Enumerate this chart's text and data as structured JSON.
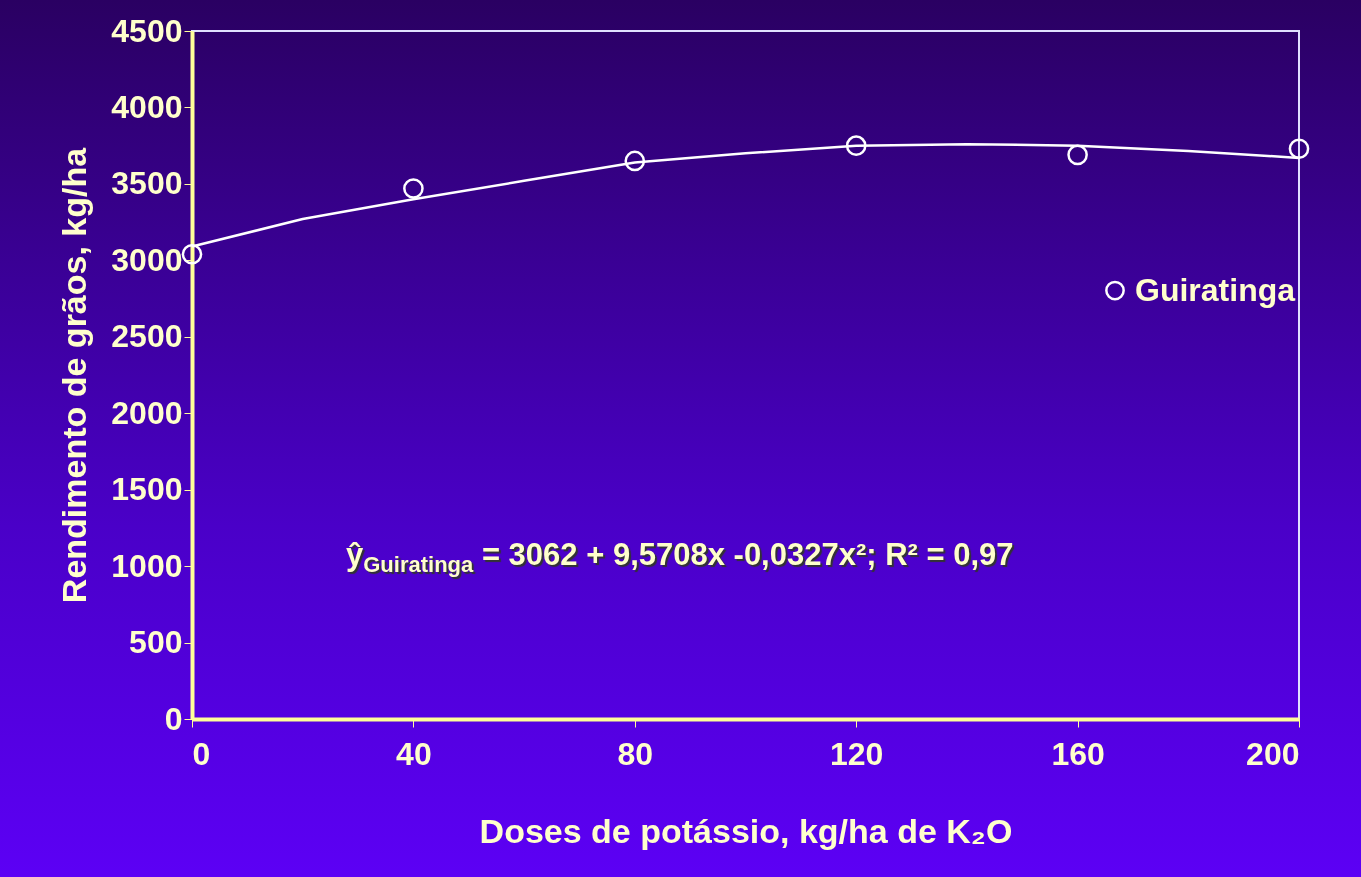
{
  "chart_data": {
    "type": "scatter",
    "xlabel": "Doses de potássio, kg/ha de K₂O",
    "ylabel": "Rendimento de grãos, kg/ha",
    "xlim": [
      0,
      200
    ],
    "xticks": [
      0,
      40,
      80,
      120,
      160,
      200
    ],
    "ylim": [
      0,
      4500
    ],
    "yticks": [
      0,
      500,
      1000,
      1500,
      2000,
      2500,
      3000,
      3500,
      4000,
      4500
    ],
    "grid": false,
    "legend": "right",
    "marker": "circle",
    "series": [
      {
        "type": "line",
        "color": "#ffffff",
        "line_style": "solid",
        "marker": "none",
        "x": [
          0,
          20,
          40,
          60,
          80,
          100,
          120,
          140,
          160,
          180,
          200
        ],
        "values": [
          3090,
          3270,
          3400,
          3520,
          3640,
          3700,
          3750,
          3760,
          3750,
          3715,
          3670
        ]
      },
      {
        "name": "Guiratinga",
        "color": "#ffffff",
        "x": [
          0,
          40,
          80,
          120,
          160,
          200
        ],
        "values": [
          3040,
          3470,
          3650,
          3750,
          3690,
          3730
        ]
      }
    ],
    "annotations": [
      "ŷ$_{Guiratinga}$ = 3062 + 9,5708x -0,0327x²; R² = 0,97"
    ]
  }
}
